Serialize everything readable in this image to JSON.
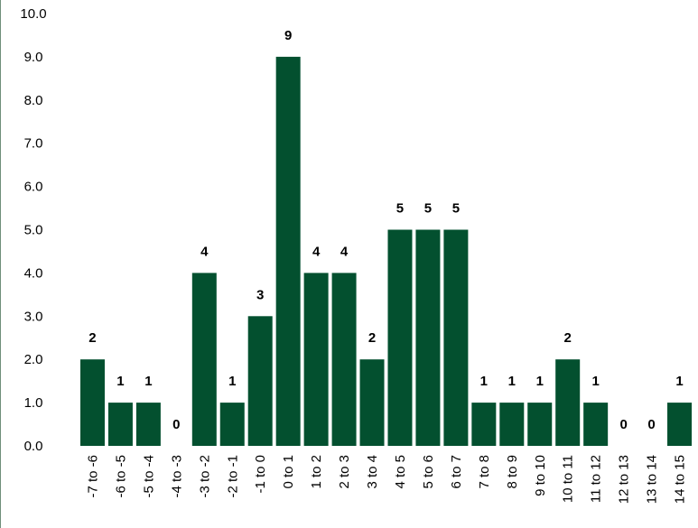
{
  "chart_data": {
    "type": "bar",
    "title": "",
    "xlabel": "",
    "ylabel": "",
    "ylim": [
      0,
      10
    ],
    "ytick_step": 1,
    "ytick_format": "0.0",
    "grid": false,
    "legend": "none",
    "bar_color": "#03502f",
    "categories": [
      "-7 to -6",
      "-6 to -5",
      "-5 to -4",
      "-4 to -3",
      "-3 to -2",
      "-2 to -1",
      "-1 to 0",
      "0 to 1",
      "1 to 2",
      "2 to 3",
      "3 to 4",
      "4 to 5",
      "5 to 6",
      "6 to 7",
      "7 to 8",
      "8 to 9",
      "9 to 10",
      "10 to 11",
      "11 to 12",
      "12 to 13",
      "13 to 14",
      "14 to 15"
    ],
    "values": [
      2,
      1,
      1,
      0,
      4,
      1,
      3,
      9,
      4,
      4,
      2,
      5,
      5,
      5,
      1,
      1,
      1,
      2,
      1,
      0,
      0,
      1
    ],
    "data_labels": [
      "2",
      "1",
      "1",
      "0",
      "4",
      "1",
      "3",
      "9",
      "4",
      "4",
      "2",
      "5",
      "5",
      "5",
      "1",
      "1",
      "1",
      "2",
      "1",
      "0",
      "0",
      "1"
    ],
    "yticks": [
      "0.0",
      "1.0",
      "2.0",
      "3.0",
      "4.0",
      "5.0",
      "6.0",
      "7.0",
      "8.0",
      "9.0",
      "10.0"
    ]
  }
}
